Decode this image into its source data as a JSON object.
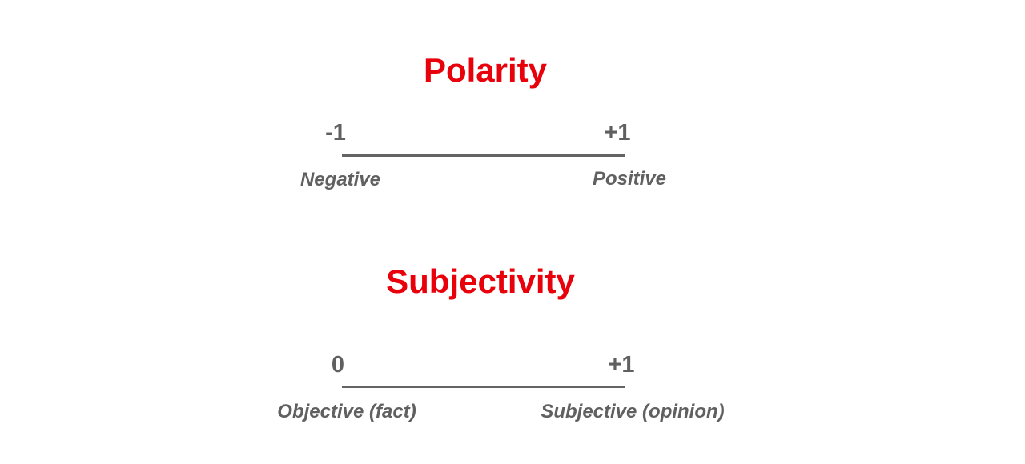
{
  "polarity": {
    "title": "Polarity",
    "min_value": "-1",
    "max_value": "+1",
    "min_label": "Negative",
    "max_label": "Positive"
  },
  "subjectivity": {
    "title": "Subjectivity",
    "min_value": "0",
    "max_value": "+1",
    "min_label": "Objective (fact)",
    "max_label": "Subjective (opinion)"
  },
  "colors": {
    "title": "#e8000b",
    "text": "#606060",
    "line": "#646464"
  }
}
